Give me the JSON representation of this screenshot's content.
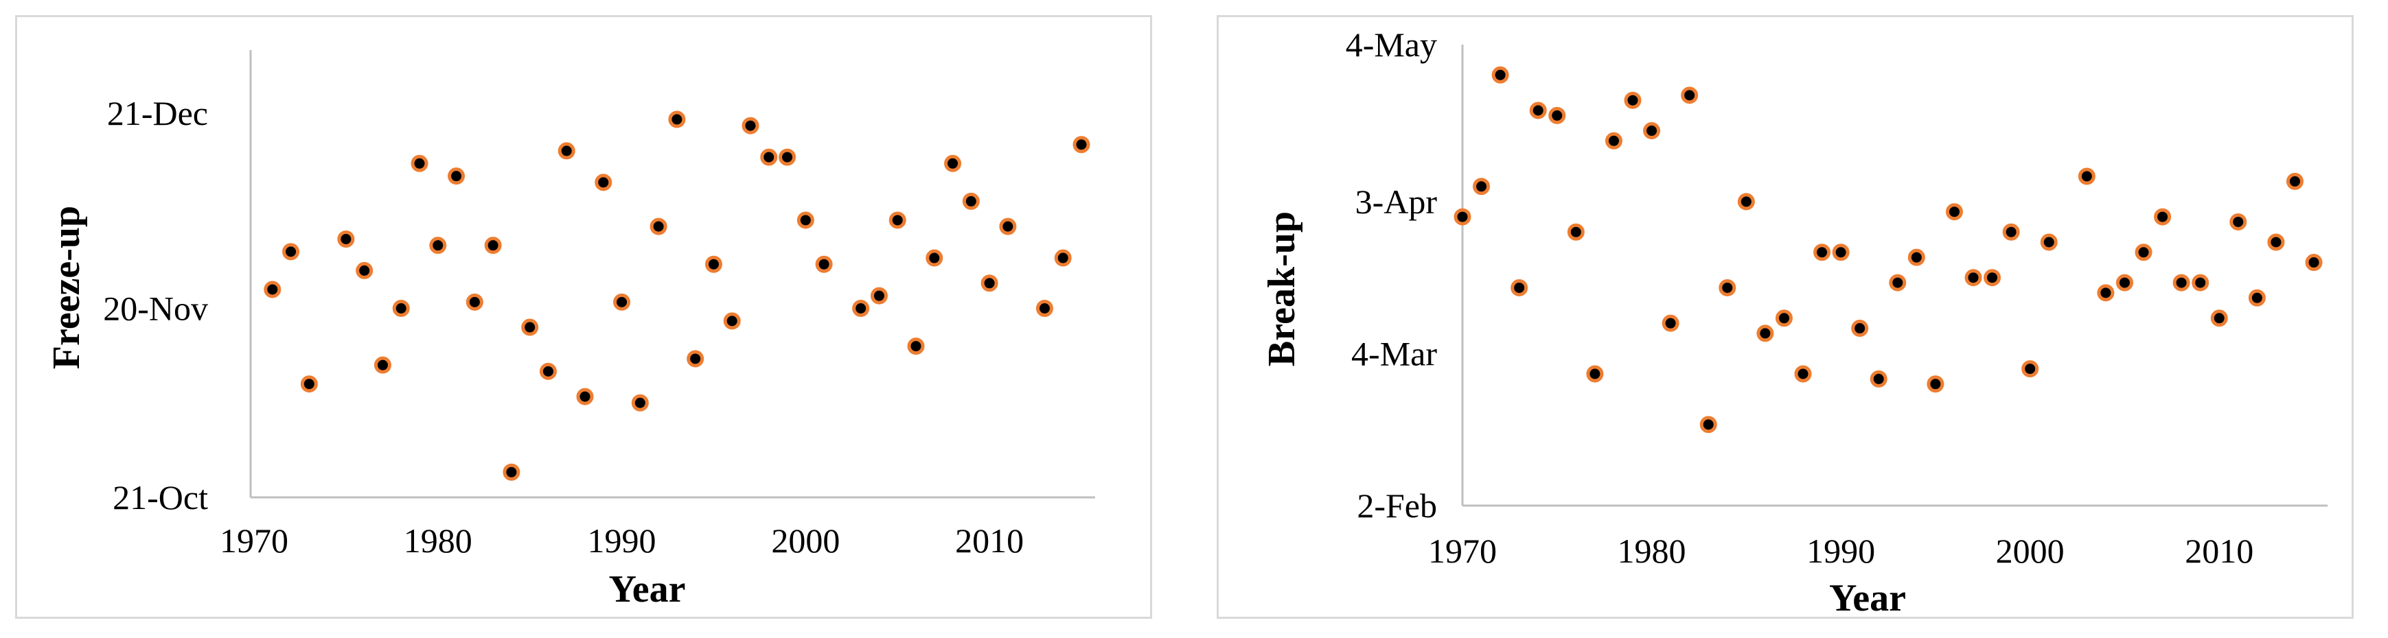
{
  "chart_data": [
    {
      "type": "scatter",
      "xlabel": "Year",
      "ylabel": "Freeze-up",
      "xlim": [
        1970,
        2015
      ],
      "ylim": [
        "2015-10-21",
        "2015-12-31"
      ],
      "xticks": [
        1970,
        1980,
        1990,
        2000,
        2010
      ],
      "yticks": [
        {
          "date": "2015-10-21",
          "label": "21-Oct"
        },
        {
          "date": "2015-11-20",
          "label": "20-Nov"
        },
        {
          "date": "2015-12-21",
          "label": "21-Dec"
        }
      ],
      "marker_fill": "#000000",
      "marker_edge": "#ed7d31",
      "grid": false,
      "legend": "none",
      "points": [
        {
          "x": 1971,
          "y": "2015-11-23"
        },
        {
          "x": 1972,
          "y": "2015-11-29"
        },
        {
          "x": 1973,
          "y": "2015-11-08"
        },
        {
          "x": 1975,
          "y": "2015-12-01"
        },
        {
          "x": 1976,
          "y": "2015-11-26"
        },
        {
          "x": 1977,
          "y": "2015-11-11"
        },
        {
          "x": 1978,
          "y": "2015-11-20"
        },
        {
          "x": 1979,
          "y": "2015-12-13"
        },
        {
          "x": 1980,
          "y": "2015-11-30"
        },
        {
          "x": 1981,
          "y": "2015-12-11"
        },
        {
          "x": 1982,
          "y": "2015-11-21"
        },
        {
          "x": 1983,
          "y": "2015-11-30"
        },
        {
          "x": 1984,
          "y": "2015-10-25"
        },
        {
          "x": 1985,
          "y": "2015-11-17"
        },
        {
          "x": 1986,
          "y": "2015-11-10"
        },
        {
          "x": 1987,
          "y": "2015-12-15"
        },
        {
          "x": 1988,
          "y": "2015-11-06"
        },
        {
          "x": 1989,
          "y": "2015-12-10"
        },
        {
          "x": 1990,
          "y": "2015-11-21"
        },
        {
          "x": 1991,
          "y": "2015-11-05"
        },
        {
          "x": 1992,
          "y": "2015-12-03"
        },
        {
          "x": 1993,
          "y": "2015-12-20"
        },
        {
          "x": 1994,
          "y": "2015-11-12"
        },
        {
          "x": 1995,
          "y": "2015-11-27"
        },
        {
          "x": 1996,
          "y": "2015-11-18"
        },
        {
          "x": 1997,
          "y": "2015-12-19"
        },
        {
          "x": 1998,
          "y": "2015-12-14"
        },
        {
          "x": 1999,
          "y": "2015-12-14"
        },
        {
          "x": 2000,
          "y": "2015-12-04"
        },
        {
          "x": 2001,
          "y": "2015-11-27"
        },
        {
          "x": 2003,
          "y": "2015-11-20"
        },
        {
          "x": 2004,
          "y": "2015-11-22"
        },
        {
          "x": 2005,
          "y": "2015-12-04"
        },
        {
          "x": 2006,
          "y": "2015-11-14"
        },
        {
          "x": 2007,
          "y": "2015-11-28"
        },
        {
          "x": 2008,
          "y": "2015-12-13"
        },
        {
          "x": 2009,
          "y": "2015-12-07"
        },
        {
          "x": 2010,
          "y": "2015-11-24"
        },
        {
          "x": 2011,
          "y": "2015-12-03"
        },
        {
          "x": 2013,
          "y": "2015-11-20"
        },
        {
          "x": 2014,
          "y": "2015-11-28"
        },
        {
          "x": 2015,
          "y": "2015-12-16"
        }
      ]
    },
    {
      "type": "scatter",
      "xlabel": "Year",
      "ylabel": "Break-up",
      "xlim": [
        1970,
        2015
      ],
      "ylim": [
        "2015-02-02",
        "2015-05-04"
      ],
      "xticks": [
        1970,
        1980,
        1990,
        2000,
        2010
      ],
      "yticks": [
        {
          "date": "2015-02-02",
          "label": "2-Feb"
        },
        {
          "date": "2015-03-04",
          "label": "4-Mar"
        },
        {
          "date": "2015-04-03",
          "label": "3-Apr"
        },
        {
          "date": "2015-05-04",
          "label": "4-May"
        }
      ],
      "marker_fill": "#000000",
      "marker_edge": "#ed7d31",
      "grid": false,
      "legend": "none",
      "points": [
        {
          "x": 1970,
          "y": "2015-03-31"
        },
        {
          "x": 1971,
          "y": "2015-04-06"
        },
        {
          "x": 1972,
          "y": "2015-04-28"
        },
        {
          "x": 1973,
          "y": "2015-03-17"
        },
        {
          "x": 1974,
          "y": "2015-04-21"
        },
        {
          "x": 1975,
          "y": "2015-04-20"
        },
        {
          "x": 1976,
          "y": "2015-03-28"
        },
        {
          "x": 1977,
          "y": "2015-02-28"
        },
        {
          "x": 1978,
          "y": "2015-04-15"
        },
        {
          "x": 1979,
          "y": "2015-04-23"
        },
        {
          "x": 1980,
          "y": "2015-04-17"
        },
        {
          "x": 1981,
          "y": "2015-03-10"
        },
        {
          "x": 1982,
          "y": "2015-04-24"
        },
        {
          "x": 1983,
          "y": "2015-02-18"
        },
        {
          "x": 1984,
          "y": "2015-03-17"
        },
        {
          "x": 1985,
          "y": "2015-04-03"
        },
        {
          "x": 1986,
          "y": "2015-03-08"
        },
        {
          "x": 1987,
          "y": "2015-03-11"
        },
        {
          "x": 1988,
          "y": "2015-02-28"
        },
        {
          "x": 1989,
          "y": "2015-03-24"
        },
        {
          "x": 1990,
          "y": "2015-03-24"
        },
        {
          "x": 1991,
          "y": "2015-03-09"
        },
        {
          "x": 1992,
          "y": "2015-02-27"
        },
        {
          "x": 1993,
          "y": "2015-03-18"
        },
        {
          "x": 1994,
          "y": "2015-03-23"
        },
        {
          "x": 1995,
          "y": "2015-02-26"
        },
        {
          "x": 1996,
          "y": "2015-04-01"
        },
        {
          "x": 1997,
          "y": "2015-03-19"
        },
        {
          "x": 1998,
          "y": "2015-03-19"
        },
        {
          "x": 1999,
          "y": "2015-03-28"
        },
        {
          "x": 2000,
          "y": "2015-03-01"
        },
        {
          "x": 2001,
          "y": "2015-03-26"
        },
        {
          "x": 2003,
          "y": "2015-04-08"
        },
        {
          "x": 2004,
          "y": "2015-03-16"
        },
        {
          "x": 2005,
          "y": "2015-03-18"
        },
        {
          "x": 2006,
          "y": "2015-03-24"
        },
        {
          "x": 2007,
          "y": "2015-03-31"
        },
        {
          "x": 2008,
          "y": "2015-03-18"
        },
        {
          "x": 2009,
          "y": "2015-03-18"
        },
        {
          "x": 2010,
          "y": "2015-03-11"
        },
        {
          "x": 2011,
          "y": "2015-03-30"
        },
        {
          "x": 2012,
          "y": "2015-03-15"
        },
        {
          "x": 2013,
          "y": "2015-03-26"
        },
        {
          "x": 2014,
          "y": "2015-04-07"
        },
        {
          "x": 2015,
          "y": "2015-03-22"
        }
      ]
    }
  ]
}
